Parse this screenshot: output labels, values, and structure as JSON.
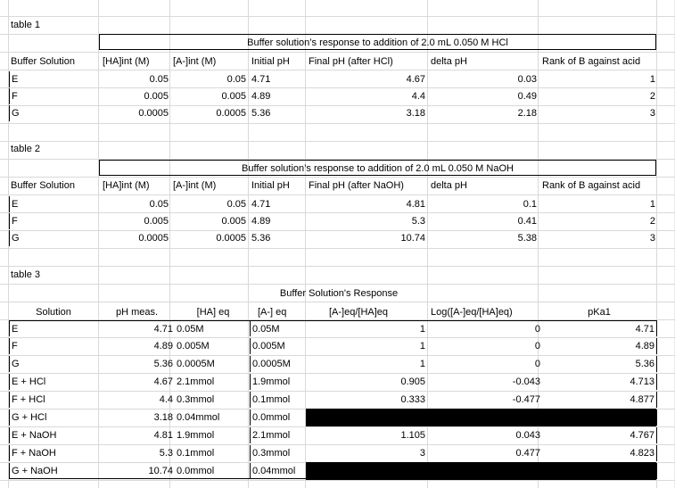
{
  "table1": {
    "label": "table 1",
    "title": "Buffer solution’s response to addition of 2.0 mL 0.050 M HCl",
    "headers": [
      "Buffer Solution",
      "[HA]int (M)",
      "[A-]int (M)",
      "Initial pH",
      "Final pH (after HCl)",
      "delta pH",
      "Rank of B against acid"
    ],
    "rows": [
      [
        "E",
        "0.05",
        "0.05",
        "4.71",
        "4.67",
        "0.03",
        "1"
      ],
      [
        "F",
        "0.005",
        "0.005",
        "4.89",
        "4.4",
        "0.49",
        "2"
      ],
      [
        "G",
        "0.0005",
        "0.0005",
        "5.36",
        "3.18",
        "2.18",
        "3"
      ]
    ]
  },
  "table2": {
    "label": "table 2",
    "title": "Buffer solution’s response to addition of 2.0 mL 0.050 M NaOH",
    "headers": [
      "Buffer Solution",
      "[HA]int (M)",
      "[A-]int (M)",
      "Initial pH",
      "Final pH (after NaOH)",
      "delta pH",
      "Rank of B against acid"
    ],
    "rows": [
      [
        "E",
        "0.05",
        "0.05",
        "4.71",
        "4.81",
        "0.1",
        "1"
      ],
      [
        "F",
        "0.005",
        "0.005",
        "4.89",
        "5.3",
        "0.41",
        "2"
      ],
      [
        "G",
        "0.0005",
        "0.0005",
        "5.36",
        "10.74",
        "5.38",
        "3"
      ]
    ]
  },
  "table3": {
    "label": "table 3",
    "title": "Buffer Solution's Response",
    "headers": [
      "Solution",
      "pH meas.",
      "[HA] eq",
      "[A-] eq",
      "[A-]eq/[HA]eq",
      "Log([A-]eq/[HA]eq)",
      "pKa1"
    ],
    "rows": [
      [
        "E",
        "4.71",
        "0.05M",
        "0.05M",
        "1",
        "0",
        "4.71"
      ],
      [
        "F",
        "4.89",
        "0.005M",
        "0.005M",
        "1",
        "0",
        "4.89"
      ],
      [
        "G",
        "5.36",
        "0.0005M",
        "0.0005M",
        "1",
        "0",
        "5.36"
      ],
      [
        "E + HCl",
        "4.67",
        "2.1mmol",
        "1.9mmol",
        "0.905",
        "-0.043",
        "4.713"
      ],
      [
        "F + HCl",
        "4.4",
        "0.3mmol",
        "0.1mmol",
        "0.333",
        "-0.477",
        "4.877"
      ],
      [
        "G + HCl",
        "3.18",
        "0.04mmol",
        "0.0mmol",
        "",
        "",
        ""
      ],
      [
        "E + NaOH",
        "4.81",
        "1.9mmol",
        "2.1mmol",
        "1.105",
        "0.043",
        "4.767"
      ],
      [
        "F + NaOH",
        "5.3",
        "0.1mmol",
        "0.3mmol",
        "3",
        "0.477",
        "4.823"
      ],
      [
        "G + NaOH",
        "10.74",
        "0.0mmol",
        "0.04mmol",
        "",
        "",
        ""
      ]
    ]
  }
}
